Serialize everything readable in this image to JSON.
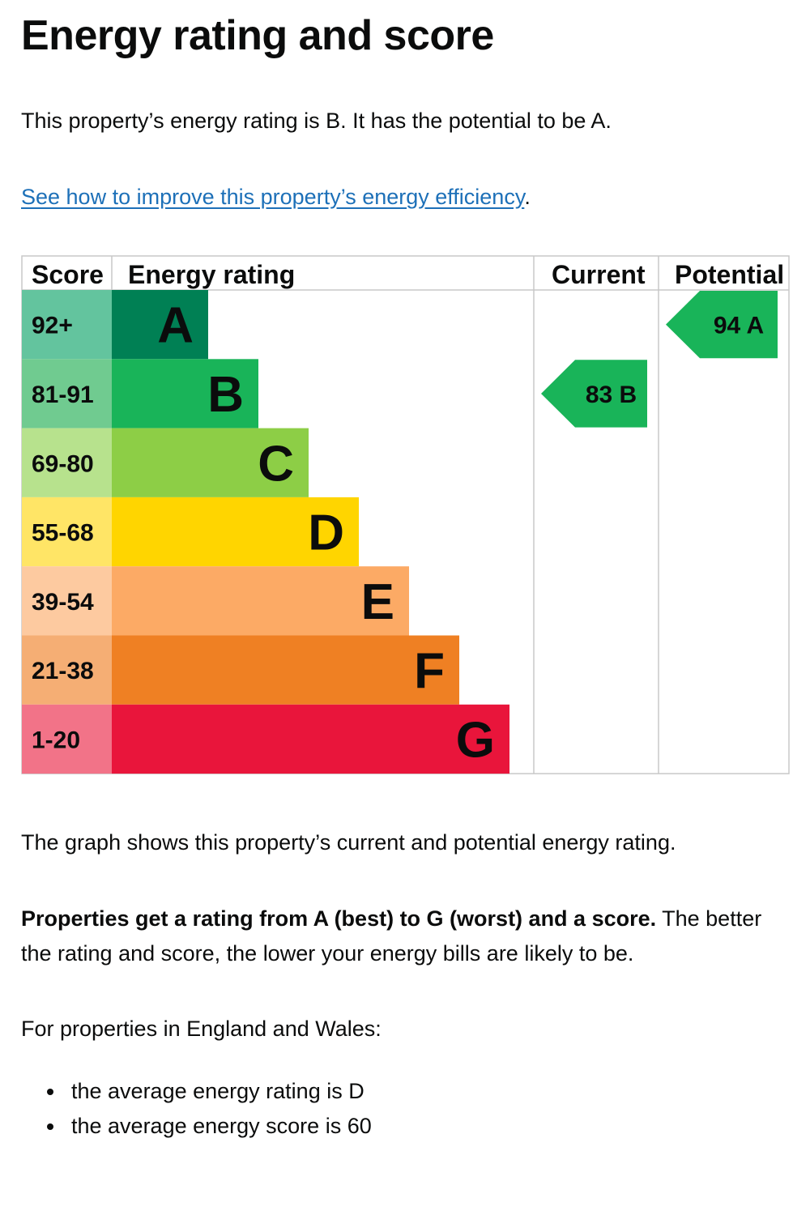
{
  "page": {
    "title": "Energy rating and score",
    "intro": "This property’s energy rating is B. It has the potential to be A.",
    "improve_link": "See how to improve this property’s energy efficiency",
    "improve_link_suffix": ".",
    "graph_note": "The graph shows this property’s current and potential energy rating.",
    "rating_bold": "Properties get a rating from A (best) to G (worst) and a score.",
    "rating_rest": " The better the rating and score, the lower your energy bills are likely to be.",
    "region_intro": "For properties in England and Wales:",
    "averages": [
      "the average energy rating is D",
      "the average energy score is 60"
    ]
  },
  "chart_data": {
    "type": "table",
    "columns": [
      "Score",
      "Energy rating",
      "Current",
      "Potential"
    ],
    "bands": [
      {
        "score_range": "92+",
        "letter": "A",
        "color": "#008054",
        "score_color": "#63c49e"
      },
      {
        "score_range": "81-91",
        "letter": "B",
        "color": "#19b459",
        "score_color": "#70cb90"
      },
      {
        "score_range": "69-80",
        "letter": "C",
        "color": "#8dce46",
        "score_color": "#b7e28d"
      },
      {
        "score_range": "55-68",
        "letter": "D",
        "color": "#ffd500",
        "score_color": "#ffe566"
      },
      {
        "score_range": "39-54",
        "letter": "E",
        "color": "#fcaa65",
        "score_color": "#fdcaa0"
      },
      {
        "score_range": "21-38",
        "letter": "F",
        "color": "#ef8023",
        "score_color": "#f5ae74"
      },
      {
        "score_range": "1-20",
        "letter": "G",
        "color": "#e9153b",
        "score_color": "#f27388"
      }
    ],
    "current": {
      "score": 83,
      "letter": "B",
      "color": "#19b459"
    },
    "potential": {
      "score": 94,
      "letter": "A",
      "color": "#19b459"
    }
  }
}
